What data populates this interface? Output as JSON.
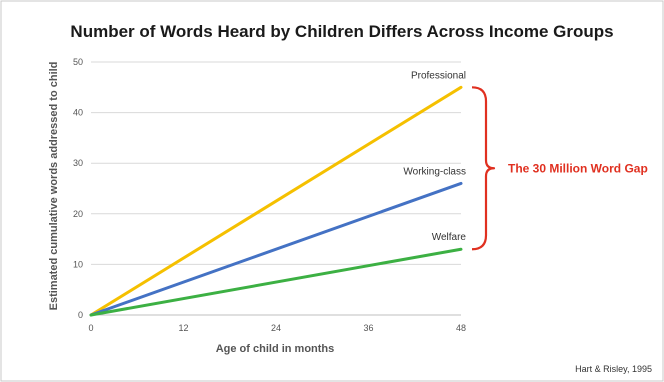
{
  "chart_data": {
    "type": "line",
    "title": "Number of Words Heard by Children Differs Across Income Groups",
    "xlabel": "Age of child in months",
    "ylabel": "Estimated cumulative words addressed to child",
    "xlim": [
      0,
      48
    ],
    "ylim": [
      0,
      50
    ],
    "x_ticks": [
      0,
      12,
      24,
      36,
      48
    ],
    "y_ticks": [
      0,
      10,
      20,
      30,
      40,
      50
    ],
    "grid": "horizontal",
    "series": [
      {
        "name": "Professional",
        "color": "#f5c000",
        "x": [
          0,
          48
        ],
        "y": [
          0,
          45
        ]
      },
      {
        "name": "Working-class",
        "color": "#4472c4",
        "x": [
          0,
          48
        ],
        "y": [
          0,
          26
        ]
      },
      {
        "name": "Welfare",
        "color": "#3cb043",
        "x": [
          0,
          48
        ],
        "y": [
          0,
          13
        ]
      }
    ],
    "annotation": {
      "text": "The 30 Million Word Gap",
      "color": "#e03020",
      "brace_from": 45,
      "brace_to": 13
    },
    "source": "Hart & Risley, 1995"
  }
}
